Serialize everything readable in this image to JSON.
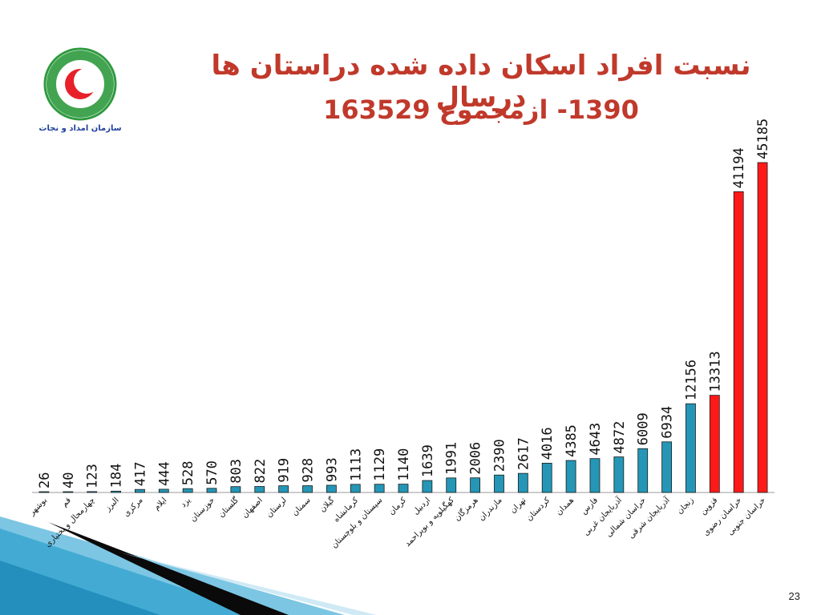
{
  "slide": {
    "title_line1": "نسبت افراد اسکان داده شده دراستان ها درسال",
    "title_line2": "1390- ازمجموع 163529",
    "page_number": "23",
    "logo": {
      "ring_text": "جمعیت هلال احمر جمهوری اسلامی ایران - Red Crescent Society of I.R.IRAN",
      "caption": "سازمان امداد و نجات",
      "icon": "red-crescent-icon"
    },
    "colors": {
      "bar_default": "#2596b6",
      "bar_highlight": "#ff1a1a",
      "title": "#c0392b",
      "logo_ring": "#2e9a3e",
      "logo_caption": "#1f3f9a"
    }
  },
  "chart_data": {
    "type": "bar",
    "title": "نسبت افراد اسکان داده شده دراستان ها درسال 1390- ازمجموع 163529",
    "xlabel": "",
    "ylabel": "",
    "ylim": [
      0,
      48000
    ],
    "grid": false,
    "legend": "none",
    "categories": [
      "بوشهر",
      "قم",
      "چهارمحال و بختیاری",
      "البرز",
      "مرکزی",
      "ایلام",
      "یزد",
      "خوزستان",
      "گلستان",
      "اصفهان",
      "لرستان",
      "سمنان",
      "گیلان",
      "کرمانشاه",
      "سیستان و بلوچستان",
      "کرمان",
      "اردبیل",
      "کهگیلویه و بویراحمد",
      "هرمزگان",
      "مازندران",
      "تهران",
      "کردستان",
      "همدان",
      "فارس",
      "آذربایجان غربی",
      "خراسان شمالی",
      "آذربایجان شرقی",
      "زنجان",
      "قزوین",
      "خراسان رضوی",
      "خراسان جنوبی"
    ],
    "values": [
      26,
      40,
      123,
      184,
      417,
      444,
      528,
      570,
      803,
      822,
      919,
      928,
      993,
      1113,
      1129,
      1140,
      1639,
      1991,
      2006,
      2390,
      2617,
      4016,
      4385,
      4643,
      4872,
      6009,
      6934,
      12156,
      13313,
      41194,
      45185
    ],
    "highlight": [
      "قزوین",
      "خراسان رضوی",
      "خراسان جنوبی"
    ]
  }
}
